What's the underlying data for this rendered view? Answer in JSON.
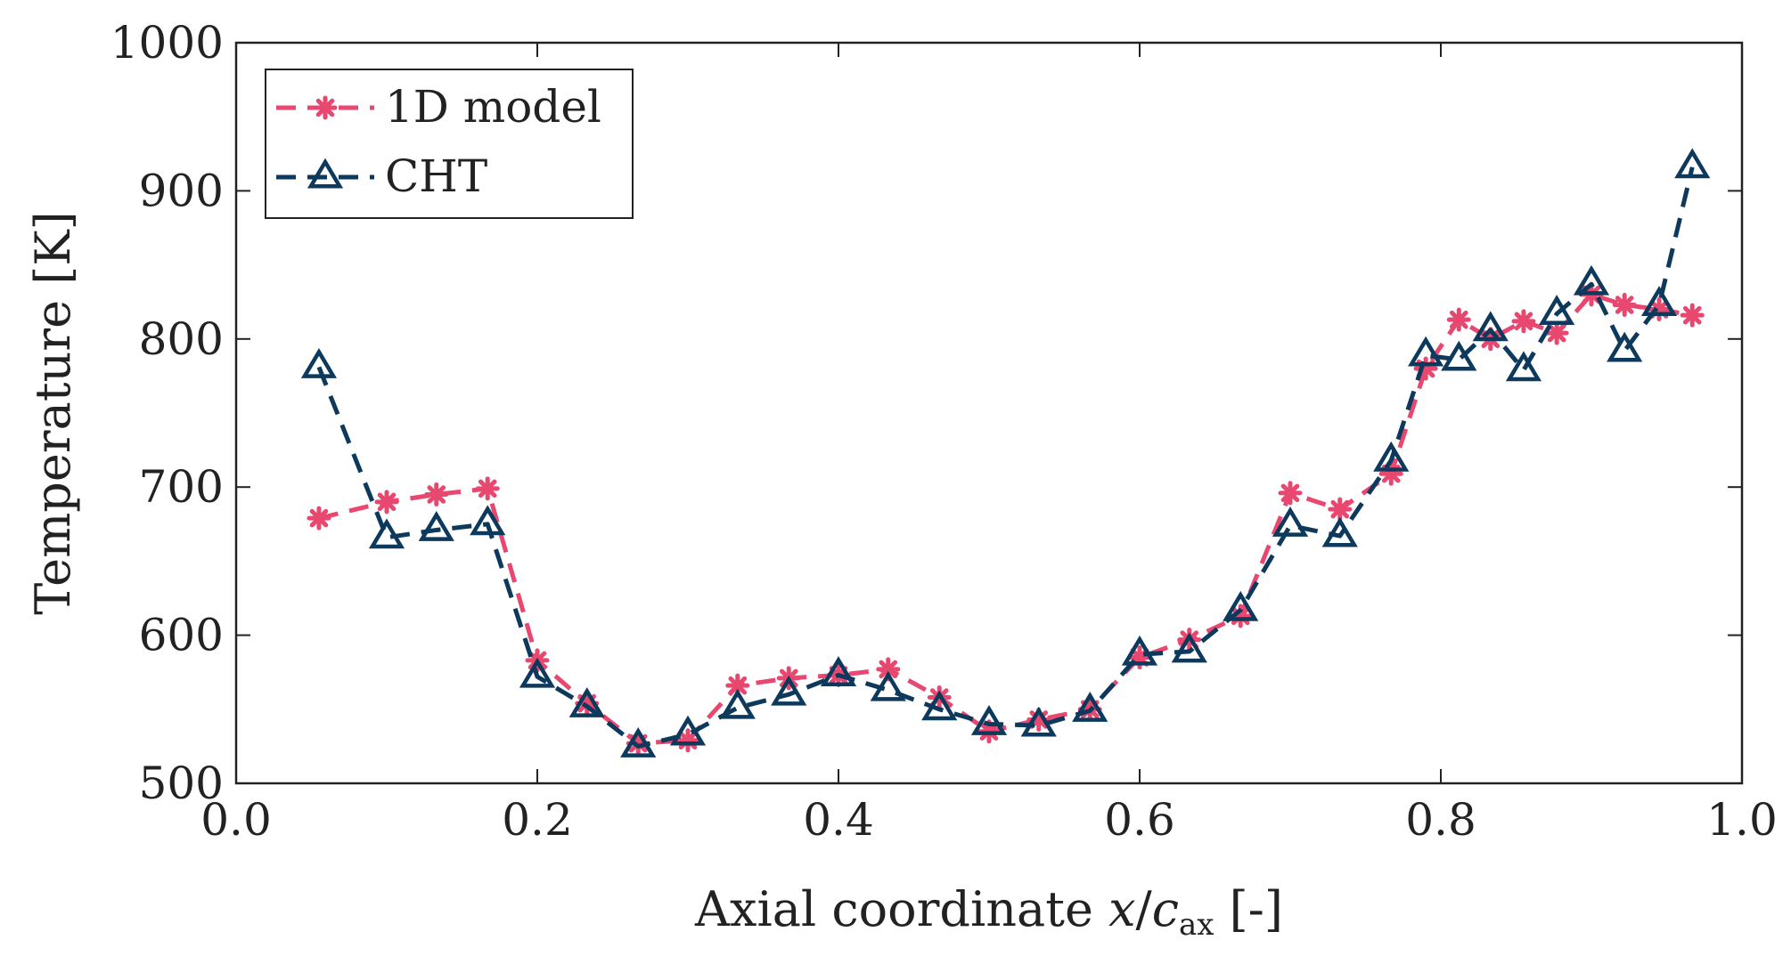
{
  "chart_data": {
    "type": "line",
    "title": "",
    "xlabel": "Axial coordinate x/c_ax [-]",
    "xlabel_parts": {
      "prefix": "Axial coordinate ",
      "var": "x",
      "slash": "/",
      "c": "c",
      "sub": "ax",
      "suffix": " [-]"
    },
    "ylabel": "Temperature [K]",
    "xlim": [
      0.0,
      1.0
    ],
    "ylim": [
      500,
      1000
    ],
    "xticks": [
      0.0,
      0.2,
      0.4,
      0.6,
      0.8,
      1.0
    ],
    "xtick_labels": [
      "0.0",
      "0.2",
      "0.4",
      "0.6",
      "0.8",
      "1.0"
    ],
    "yticks": [
      500,
      600,
      700,
      800,
      900,
      1000
    ],
    "ytick_labels": [
      "500",
      "600",
      "700",
      "800",
      "900",
      "1000"
    ],
    "grid": false,
    "legend_position": "top-left",
    "series": [
      {
        "name": "1D model",
        "color": "#e8476f",
        "marker": "asterisk",
        "x": [
          0.055,
          0.1,
          0.133,
          0.167,
          0.2,
          0.233,
          0.267,
          0.3,
          0.333,
          0.367,
          0.4,
          0.433,
          0.467,
          0.5,
          0.533,
          0.567,
          0.6,
          0.633,
          0.667,
          0.7,
          0.733,
          0.767,
          0.79,
          0.812,
          0.833,
          0.855,
          0.877,
          0.9,
          0.922,
          0.945,
          0.967
        ],
        "y": [
          679,
          690,
          695,
          699,
          583,
          554,
          527,
          529,
          566,
          571,
          573,
          577,
          558,
          535,
          543,
          550,
          585,
          597,
          613,
          696,
          685,
          709,
          780,
          813,
          800,
          812,
          804,
          830,
          823,
          820,
          816
        ]
      },
      {
        "name": "CHT",
        "color": "#0d3a5c",
        "marker": "triangle",
        "x": [
          0.055,
          0.1,
          0.133,
          0.167,
          0.2,
          0.233,
          0.267,
          0.3,
          0.333,
          0.367,
          0.4,
          0.433,
          0.467,
          0.5,
          0.533,
          0.567,
          0.6,
          0.633,
          0.667,
          0.7,
          0.733,
          0.767,
          0.79,
          0.812,
          0.833,
          0.855,
          0.877,
          0.9,
          0.922,
          0.945,
          0.967
        ],
        "y": [
          781,
          666,
          671,
          675,
          572,
          552,
          525,
          533,
          551,
          560,
          573,
          563,
          550,
          540,
          539,
          549,
          587,
          589,
          617,
          674,
          667,
          718,
          789,
          786,
          806,
          779,
          817,
          837,
          792,
          823,
          916
        ]
      }
    ]
  }
}
